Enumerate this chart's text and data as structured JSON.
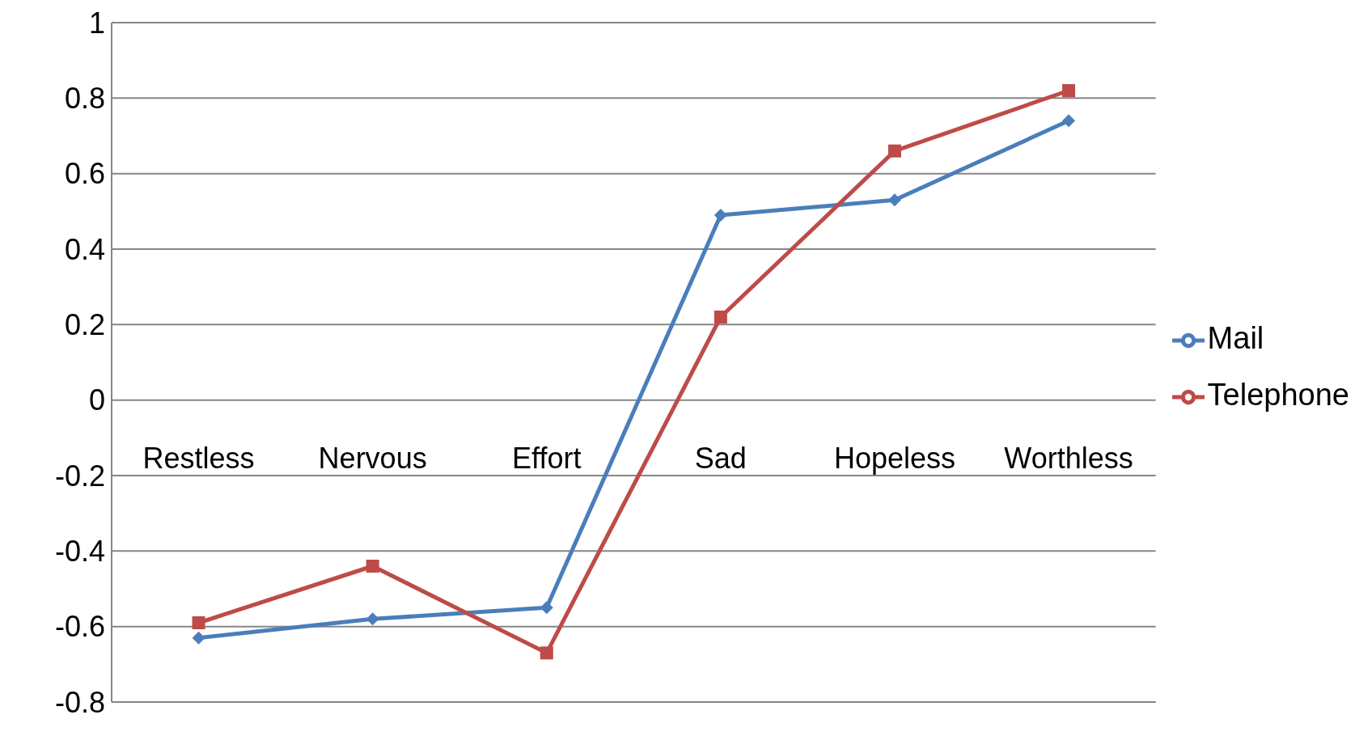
{
  "chart_data": {
    "type": "line",
    "categories": [
      "Restless",
      "Nervous",
      "Effort",
      "Sad",
      "Hopeless",
      "Worthless"
    ],
    "series": [
      {
        "name": "Mail",
        "color": "#4a7ebb",
        "values": [
          -0.63,
          -0.58,
          -0.55,
          0.49,
          0.53,
          0.74
        ],
        "marker": "diamond"
      },
      {
        "name": "Telephone",
        "color": "#be4b48",
        "values": [
          -0.59,
          -0.44,
          -0.67,
          0.22,
          0.66,
          0.82
        ],
        "marker": "square"
      }
    ],
    "ylim": [
      -0.8,
      1
    ],
    "yticks": [
      -0.8,
      -0.6,
      -0.4,
      -0.2,
      0,
      0.2,
      0.4,
      0.6,
      0.8,
      1
    ],
    "grid": "y",
    "legend": "right",
    "line_style": "solid"
  }
}
